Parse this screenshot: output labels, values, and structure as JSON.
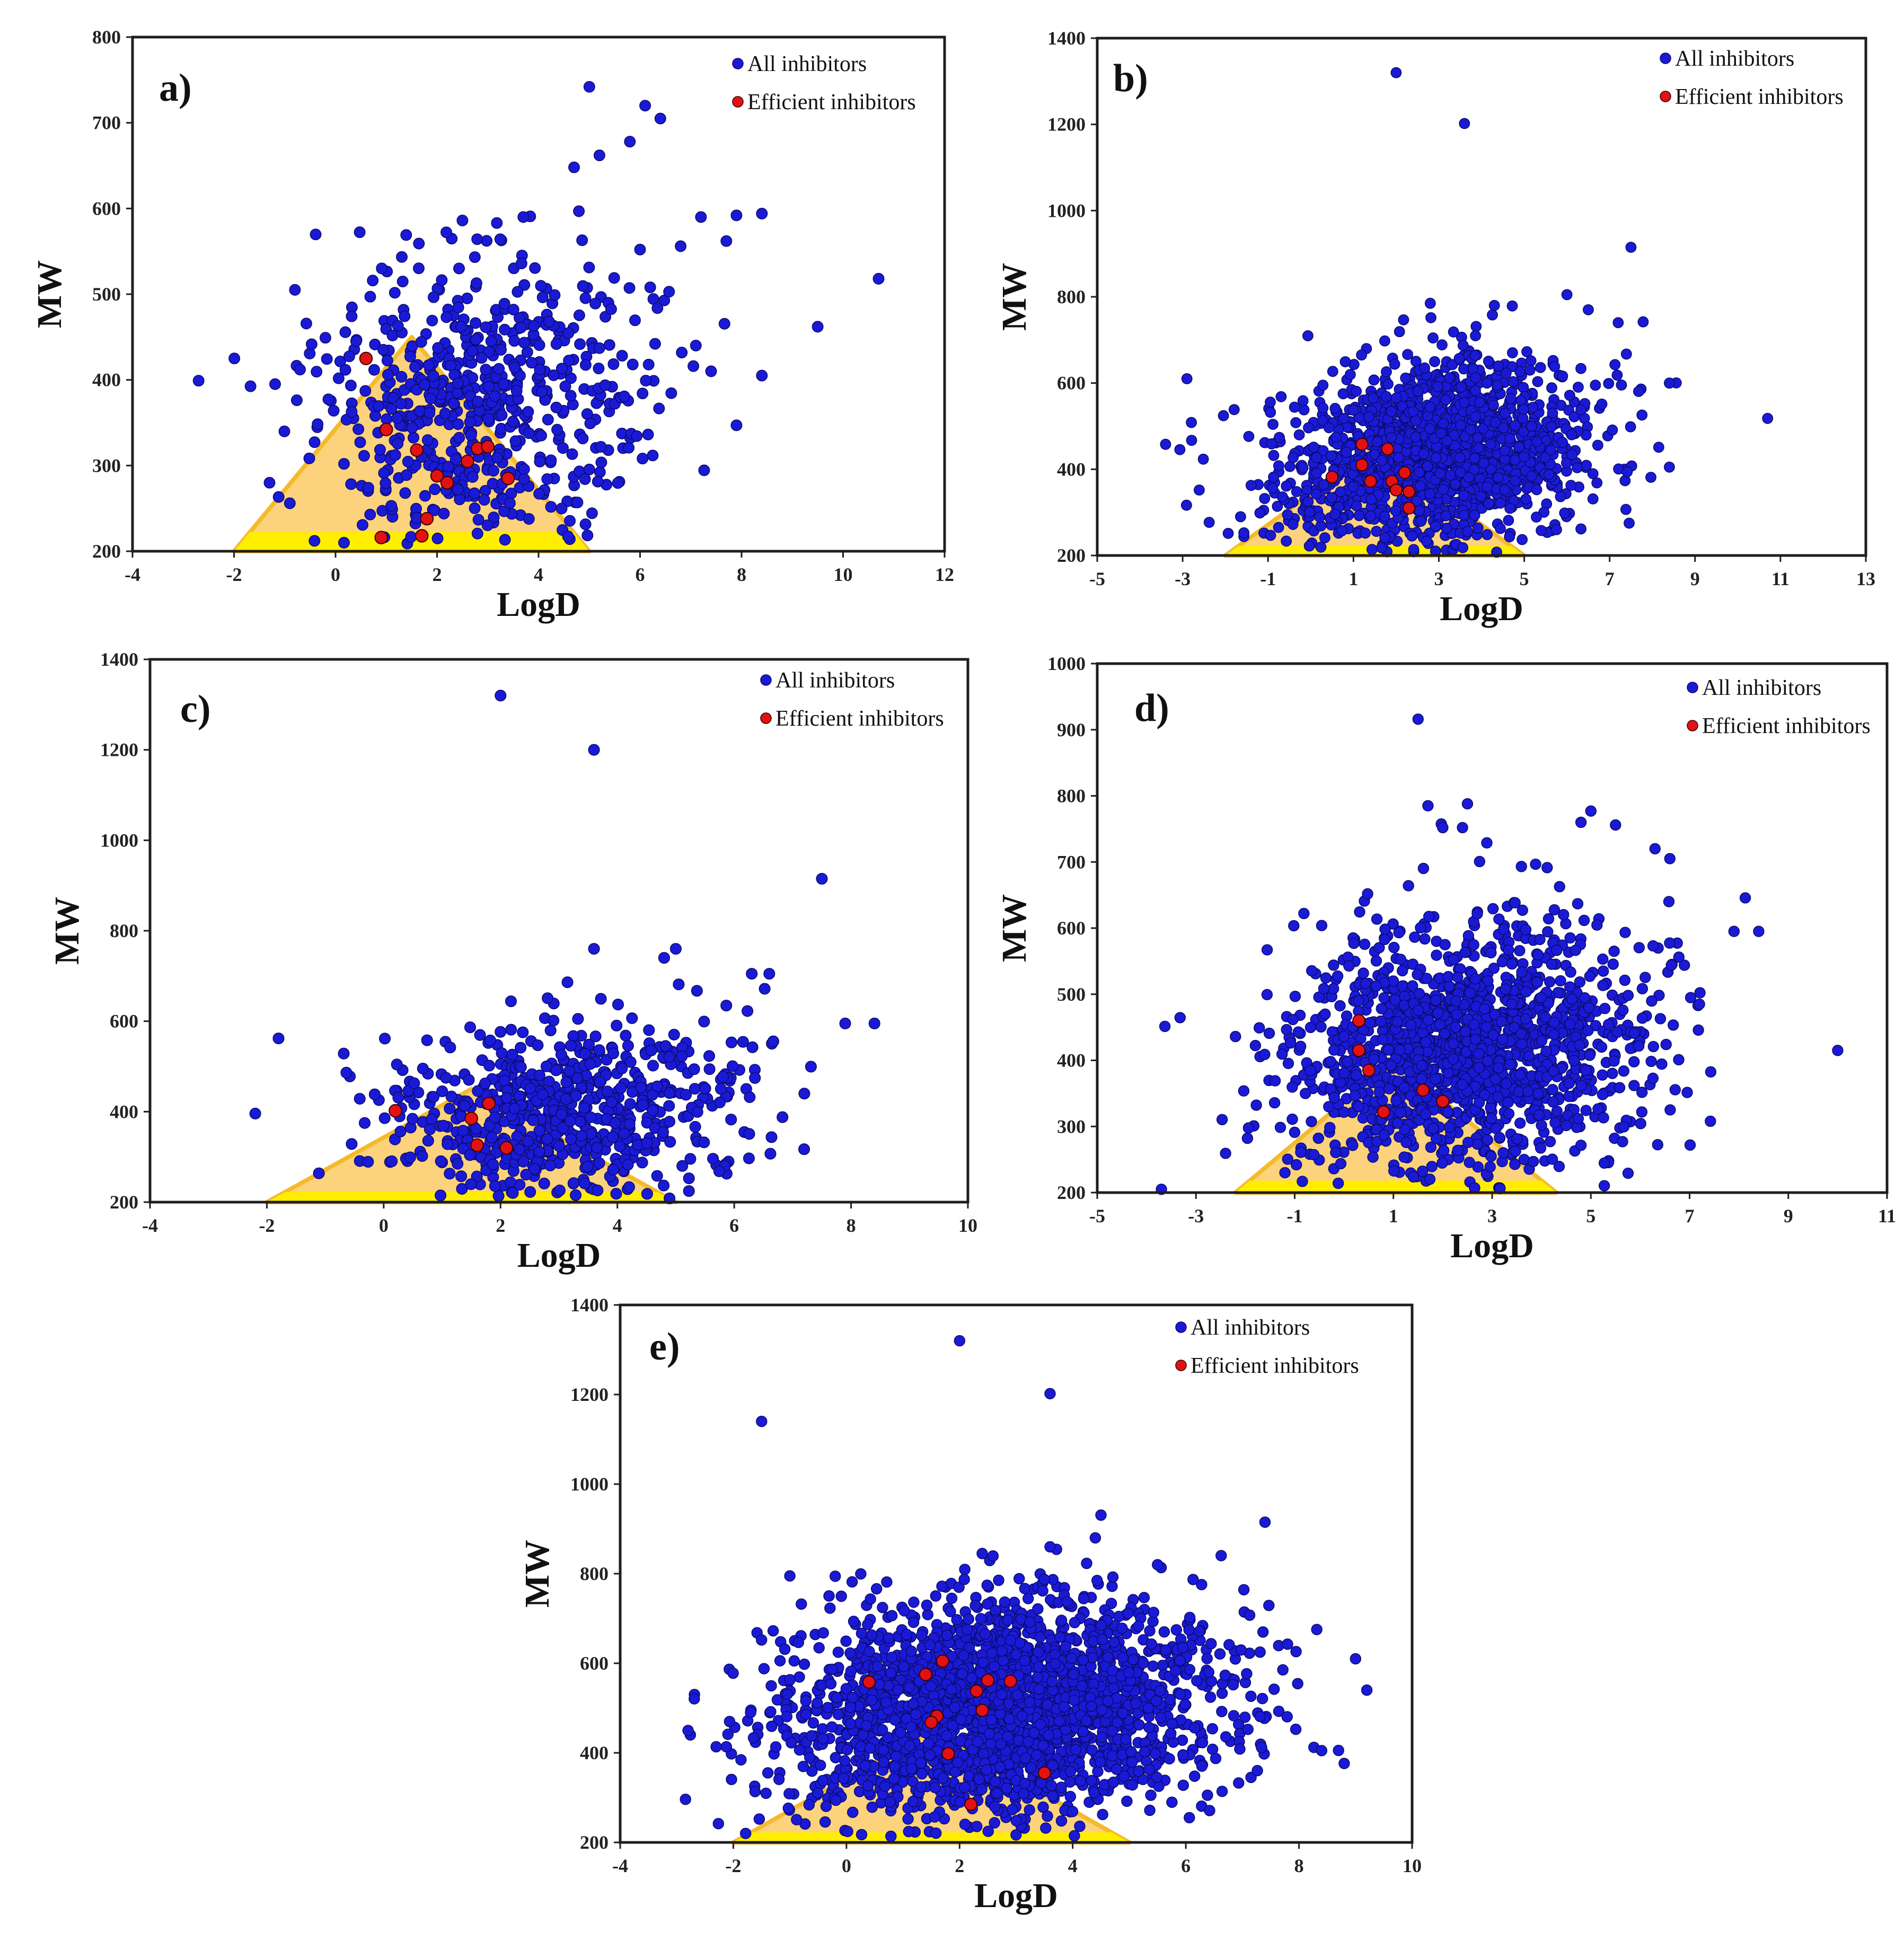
{
  "colors": {
    "all": "#1a1ad6",
    "efficient": "#e31212",
    "triangle_outer": "#f5ba2c",
    "triangle_inner": "#fcd27c",
    "triangle_band": "#ffee00",
    "frame": "#1e1e1e"
  },
  "chart_data": [
    {
      "type": "scatter",
      "panel_label": "a)",
      "xlabel": "LogD",
      "ylabel": "MW",
      "xlim": [
        -4,
        12
      ],
      "ylim": [
        200,
        800
      ],
      "xticks": [
        "-4",
        "-2",
        "0",
        "2",
        "4",
        "6",
        "8",
        "10",
        "12"
      ],
      "yticks": [
        "200",
        "300",
        "400",
        "500",
        "600",
        "700",
        "800"
      ],
      "legend": [
        "All inhibitors",
        "Efficient inhibitors"
      ],
      "triangle": {
        "x_left": -2,
        "x_right": 5,
        "x_apex": 1.5,
        "y_apex": 450
      },
      "all_count": 650,
      "all_center": [
        2.9,
        370
      ],
      "all_spread": [
        1.6,
        85
      ],
      "outliers": [
        [
          5.0,
          742
        ],
        [
          6.1,
          720
        ],
        [
          6.4,
          705
        ],
        [
          5.8,
          678
        ],
        [
          4.7,
          648
        ],
        [
          5.2,
          662
        ],
        [
          10.7,
          518
        ],
        [
          9.5,
          462
        ],
        [
          8.4,
          594
        ],
        [
          7.9,
          592
        ],
        [
          7.2,
          590
        ],
        [
          6.8,
          556
        ],
        [
          7.7,
          562
        ],
        [
          8.4,
          405
        ],
        [
          7.9,
          347
        ],
        [
          7.4,
          410
        ],
        [
          7.1,
          440
        ],
        [
          -0.8,
          505
        ],
        [
          -0.7,
          412
        ],
        [
          -1.3,
          280
        ],
        [
          -0.9,
          256
        ],
        [
          6.2,
          508
        ],
        [
          6.0,
          552
        ],
        [
          3.7,
          590
        ],
        [
          2.5,
          586
        ]
      ],
      "efficient": [
        [
          0.6,
          425
        ],
        [
          1.0,
          342
        ],
        [
          1.6,
          318
        ],
        [
          2.2,
          280
        ],
        [
          2.0,
          288
        ],
        [
          2.8,
          320
        ],
        [
          2.6,
          305
        ],
        [
          3.4,
          285
        ],
        [
          1.8,
          238
        ],
        [
          1.7,
          218
        ],
        [
          0.9,
          216
        ],
        [
          3.0,
          322
        ]
      ]
    },
    {
      "type": "scatter",
      "panel_label": "b)",
      "xlabel": "LogD",
      "ylabel": "MW",
      "xlim": [
        -5,
        13
      ],
      "ylim": [
        200,
        1400
      ],
      "xticks": [
        "-5",
        "-3",
        "-1",
        "1",
        "3",
        "5",
        "7",
        "9",
        "11",
        "13"
      ],
      "yticks": [
        "200",
        "400",
        "600",
        "800",
        "1000",
        "1200",
        "1400"
      ],
      "legend": [
        "All inhibitors",
        "Efficient inhibitors"
      ],
      "triangle": {
        "x_left": -2,
        "x_right": 5,
        "x_apex": 1.5,
        "y_apex": 450
      },
      "all_count": 1500,
      "all_center": [
        2.9,
        440
      ],
      "all_spread": [
        1.8,
        105
      ],
      "outliers": [
        [
          2.0,
          1320
        ],
        [
          3.6,
          1202
        ],
        [
          7.5,
          915
        ],
        [
          10.7,
          518
        ],
        [
          8.4,
          600
        ],
        [
          8.4,
          405
        ],
        [
          -2.9,
          610
        ],
        [
          -3.4,
          458
        ],
        [
          6.0,
          805
        ],
        [
          4.3,
          780
        ],
        [
          2.8,
          785
        ],
        [
          7.2,
          740
        ],
        [
          6.5,
          770
        ]
      ],
      "efficient": [
        [
          1.2,
          458
        ],
        [
          1.8,
          447
        ],
        [
          1.2,
          410
        ],
        [
          0.5,
          382
        ],
        [
          1.4,
          372
        ],
        [
          1.9,
          372
        ],
        [
          2.2,
          392
        ],
        [
          2.0,
          352
        ],
        [
          2.3,
          348
        ],
        [
          2.3,
          310
        ]
      ]
    },
    {
      "type": "scatter",
      "panel_label": "c)",
      "xlabel": "LogD",
      "ylabel": "MW",
      "xlim": [
        -4,
        10
      ],
      "ylim": [
        200,
        1400
      ],
      "xticks": [
        "-4",
        "-2",
        "0",
        "2",
        "4",
        "6",
        "8",
        "10"
      ],
      "yticks": [
        "200",
        "400",
        "600",
        "800",
        "1000",
        "1200",
        "1400"
      ],
      "legend": [
        "All inhibitors",
        "Efficient inhibitors"
      ],
      "triangle": {
        "x_left": -2,
        "x_right": 5,
        "x_apex": 1.5,
        "y_apex": 450
      },
      "all_count": 700,
      "all_center": [
        3.1,
        400
      ],
      "all_spread": [
        1.6,
        100
      ],
      "outliers": [
        [
          2.0,
          1320
        ],
        [
          3.6,
          1200
        ],
        [
          7.5,
          915
        ],
        [
          -1.8,
          562
        ],
        [
          8.4,
          595
        ],
        [
          7.9,
          595
        ],
        [
          7.2,
          440
        ],
        [
          3.6,
          760
        ],
        [
          5.0,
          760
        ],
        [
          4.8,
          740
        ],
        [
          6.3,
          705
        ],
        [
          6.6,
          705
        ]
      ],
      "efficient": [
        [
          0.2,
          402
        ],
        [
          1.8,
          418
        ],
        [
          1.5,
          385
        ],
        [
          1.6,
          326
        ],
        [
          2.1,
          320
        ]
      ]
    },
    {
      "type": "scatter",
      "panel_label": "d)",
      "xlabel": "LogD",
      "ylabel": "MW",
      "xlim": [
        -5,
        11
      ],
      "ylim": [
        200,
        1000
      ],
      "xticks": [
        "-5",
        "-3",
        "-1",
        "1",
        "3",
        "5",
        "7",
        "9",
        "11"
      ],
      "yticks": [
        "200",
        "300",
        "400",
        "500",
        "600",
        "700",
        "800",
        "900",
        "1000"
      ],
      "legend": [
        "All inhibitors",
        "Efficient inhibitors"
      ],
      "triangle": {
        "x_left": -2.2,
        "x_right": 4.3,
        "x_apex": 1.0,
        "y_apex": 400
      },
      "all_count": 1500,
      "all_center": [
        2.4,
        420
      ],
      "all_spread": [
        1.8,
        95
      ],
      "outliers": [
        [
          1.5,
          916
        ],
        [
          10.0,
          415
        ],
        [
          -3.7,
          205
        ],
        [
          8.4,
          595
        ],
        [
          7.9,
          595
        ],
        [
          7.2,
          485
        ],
        [
          1.7,
          785
        ],
        [
          2.5,
          788
        ],
        [
          2.0,
          752
        ],
        [
          2.4,
          752
        ],
        [
          5.0,
          777
        ],
        [
          5.5,
          756
        ],
        [
          4.8,
          760
        ],
        [
          6.6,
          705
        ],
        [
          6.3,
          720
        ],
        [
          -2.2,
          436
        ]
      ],
      "efficient": [
        [
          0.3,
          460
        ],
        [
          0.3,
          415
        ],
        [
          0.5,
          385
        ],
        [
          1.6,
          355
        ],
        [
          2.0,
          338
        ],
        [
          0.8,
          322
        ]
      ]
    },
    {
      "type": "scatter",
      "panel_label": "e)",
      "xlabel": "LogD",
      "ylabel": "MW",
      "xlim": [
        -4,
        10
      ],
      "ylim": [
        200,
        1400
      ],
      "xticks": [
        "-4",
        "-2",
        "0",
        "2",
        "4",
        "6",
        "8",
        "10"
      ],
      "yticks": [
        "200",
        "400",
        "600",
        "800",
        "1000",
        "1200",
        "1400"
      ],
      "legend": [
        "All inhibitors",
        "Efficient inhibitors"
      ],
      "triangle": {
        "x_left": -2,
        "x_right": 5,
        "x_apex": 1.5,
        "y_apex": 450
      },
      "all_count": 2400,
      "all_center": [
        2.7,
        500
      ],
      "all_spread": [
        1.9,
        120
      ],
      "outliers": [
        [
          2.0,
          1320
        ],
        [
          3.6,
          1202
        ],
        [
          -1.5,
          1140
        ],
        [
          7.4,
          915
        ],
        [
          -1.0,
          795
        ],
        [
          -2.8,
          450
        ],
        [
          9.2,
          540
        ],
        [
          9.0,
          610
        ],
        [
          8.4,
          405
        ],
        [
          4.4,
          880
        ],
        [
          3.6,
          860
        ],
        [
          2.4,
          845
        ],
        [
          5.5,
          820
        ]
      ],
      "efficient": [
        [
          0.4,
          558
        ],
        [
          1.4,
          575
        ],
        [
          1.7,
          605
        ],
        [
          2.5,
          562
        ],
        [
          2.9,
          560
        ],
        [
          2.3,
          538
        ],
        [
          2.4,
          495
        ],
        [
          1.6,
          482
        ],
        [
          1.5,
          468
        ],
        [
          1.8,
          398
        ],
        [
          3.5,
          355
        ],
        [
          2.2,
          285
        ]
      ]
    }
  ]
}
